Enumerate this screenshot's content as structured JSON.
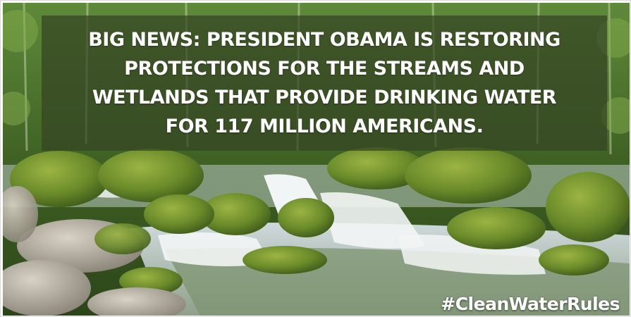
{
  "image": {
    "scene": "forest stream with mossy rocks and waterfall",
    "colors": {
      "moss": "#6f8f2c",
      "water": "#e8eef0",
      "overlay": "#344422",
      "text": "#ffffff"
    }
  },
  "headline": {
    "line1": "BIG NEWS: PRESIDENT OBAMA IS RESTORING",
    "line2": "PROTECTIONS FOR THE STREAMS AND",
    "line3": "WETLANDS THAT PROVIDE DRINKING WATER",
    "line4": "FOR 117 MILLION AMERICANS."
  },
  "hashtag": "#CleanWaterRules"
}
